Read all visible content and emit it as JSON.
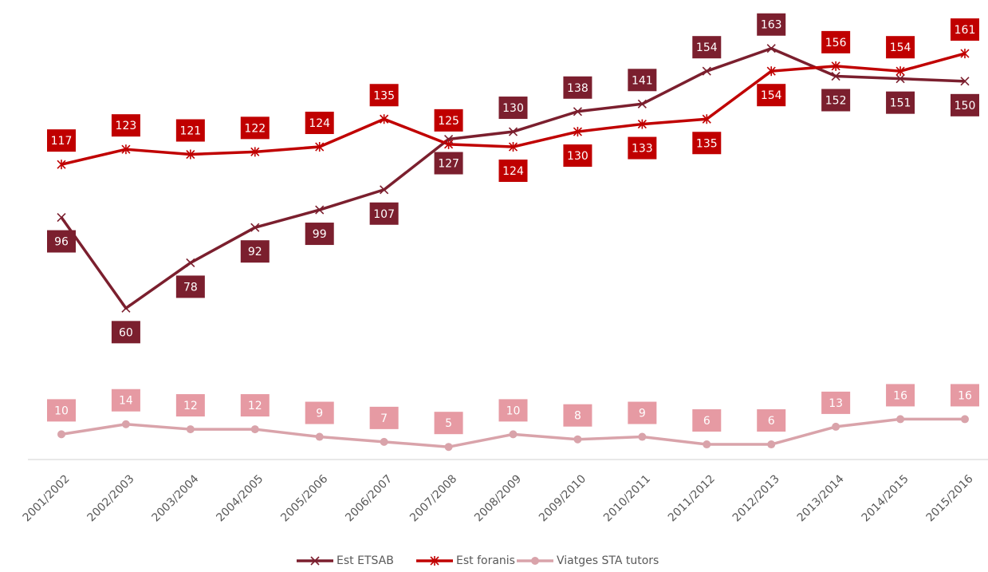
{
  "chart_data": {
    "type": "line",
    "categories": [
      "2001/2002",
      "2002/2003",
      "2003/2004",
      "2004/2005",
      "2005/2006",
      "2006/2007",
      "2007/2008",
      "2008/2009",
      "2009/2010",
      "2010/2011",
      "2011/2012",
      "2012/2013",
      "2013/2014",
      "2014/2015",
      "2015/2016"
    ],
    "series": [
      {
        "name": "Est ETSAB",
        "color": "#7b1f2e",
        "marker": "x",
        "values": [
          96,
          60,
          78,
          92,
          99,
          107,
          127,
          130,
          138,
          141,
          154,
          163,
          152,
          151,
          150
        ]
      },
      {
        "name": "Est foranis",
        "color": "#c00000",
        "marker": "star",
        "values": [
          117,
          123,
          121,
          122,
          124,
          135,
          125,
          124,
          130,
          133,
          135,
          154,
          156,
          154,
          161
        ]
      },
      {
        "name": "Viatges STA tutors",
        "color": "#d9a3aa",
        "marker": "circle",
        "values": [
          10,
          14,
          12,
          12,
          9,
          7,
          5,
          10,
          8,
          9,
          6,
          6,
          13,
          16,
          16
        ]
      }
    ],
    "ylim": [
      0,
      180
    ],
    "legend": "bottom"
  }
}
